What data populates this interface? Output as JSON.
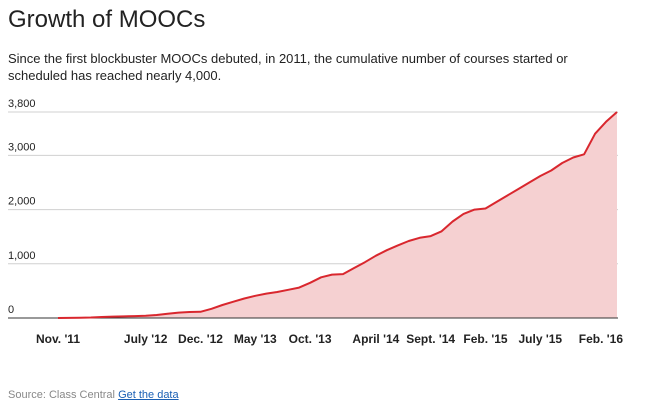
{
  "title": "Growth of MOOCs",
  "subtitle": "Since the first blockbuster MOOCs debuted, in 2011, the cumulative number of courses started or scheduled has reached nearly 4,000.",
  "source": {
    "label": "Source: Class Central",
    "link": "Get the data"
  },
  "colors": {
    "line": "#d9272e",
    "fill": "#f5d0d1",
    "grid": "#d0d0d0",
    "axis": "#333333"
  },
  "chart_data": {
    "type": "area",
    "title": "Growth of MOOCs",
    "xlabel": "",
    "ylabel": "",
    "ylim": [
      0,
      3800
    ],
    "xlim": [
      "2011-11",
      "2016-02"
    ],
    "grid": true,
    "y_ticks": [
      {
        "value": 0,
        "label": "0"
      },
      {
        "value": 1000,
        "label": "1,000"
      },
      {
        "value": 2000,
        "label": "2,000"
      },
      {
        "value": 3000,
        "label": "3,000"
      },
      {
        "value": 3800,
        "label": "3,800"
      }
    ],
    "x_ticks": [
      {
        "value": "2011-11",
        "label": "Nov. '11"
      },
      {
        "value": "2012-07",
        "label": "July '12"
      },
      {
        "value": "2012-12",
        "label": "Dec. '12"
      },
      {
        "value": "2013-05",
        "label": "May '13"
      },
      {
        "value": "2013-10",
        "label": "Oct. '13"
      },
      {
        "value": "2014-04",
        "label": "April '14"
      },
      {
        "value": "2014-09",
        "label": "Sept. '14"
      },
      {
        "value": "2015-02",
        "label": "Feb. '15"
      },
      {
        "value": "2015-07",
        "label": "July '15"
      },
      {
        "value": "2016-02",
        "label": "Feb. '16"
      }
    ],
    "x": [
      "2011-11",
      "2011-12",
      "2012-01",
      "2012-02",
      "2012-03",
      "2012-04",
      "2012-05",
      "2012-06",
      "2012-07",
      "2012-08",
      "2012-09",
      "2012-10",
      "2012-11",
      "2012-12",
      "2013-01",
      "2013-02",
      "2013-03",
      "2013-04",
      "2013-05",
      "2013-06",
      "2013-07",
      "2013-08",
      "2013-09",
      "2013-10",
      "2013-11",
      "2013-12",
      "2014-01",
      "2014-02",
      "2014-03",
      "2014-04",
      "2014-05",
      "2014-06",
      "2014-07",
      "2014-08",
      "2014-09",
      "2014-10",
      "2014-11",
      "2014-12",
      "2015-01",
      "2015-02",
      "2015-03",
      "2015-04",
      "2015-05",
      "2015-06",
      "2015-07",
      "2015-08",
      "2015-09",
      "2015-10",
      "2015-11",
      "2015-12",
      "2016-01",
      "2016-02"
    ],
    "series": [
      {
        "values": [
          0,
          2,
          5,
          10,
          18,
          25,
          30,
          35,
          40,
          55,
          80,
          100,
          110,
          115,
          170,
          240,
          300,
          360,
          410,
          450,
          480,
          520,
          560,
          650,
          750,
          800,
          810,
          920,
          1030,
          1150,
          1250,
          1340,
          1420,
          1480,
          1510,
          1600,
          1780,
          1920,
          2000,
          2020,
          2140,
          2260,
          2380,
          2500,
          2620,
          2720,
          2860,
          2960,
          3020,
          3400,
          3620,
          3800
        ]
      }
    ]
  }
}
